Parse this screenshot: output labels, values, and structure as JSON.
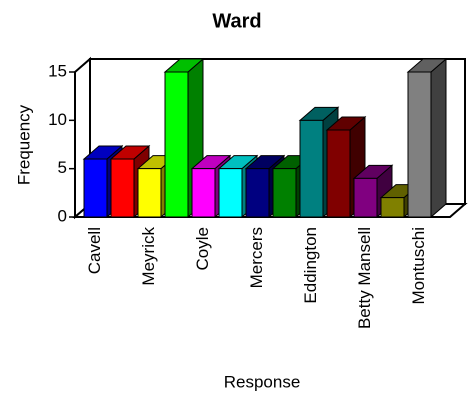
{
  "chart_data": {
    "type": "bar",
    "title": "Ward",
    "x_label": "Response",
    "y_label": "Frequency",
    "categories": [
      "Cavell",
      null,
      "Meyrick",
      null,
      "Coyle",
      null,
      "Mercers",
      null,
      "Eddington",
      null,
      "Betty Mansell",
      null,
      "Montuschi"
    ],
    "values": [
      6,
      6,
      5,
      15,
      5,
      5,
      5,
      5,
      10,
      9,
      4,
      2,
      15
    ],
    "colors": [
      "#0000ff",
      "#ff0000",
      "#ffff00",
      "#00ff00",
      "#ff00ff",
      "#00ffff",
      "#000080",
      "#008000",
      "#008080",
      "#800000",
      "#800080",
      "#808000",
      "#808080"
    ],
    "ylim": [
      0,
      15
    ],
    "yticks": [
      0,
      5,
      10,
      15
    ]
  }
}
